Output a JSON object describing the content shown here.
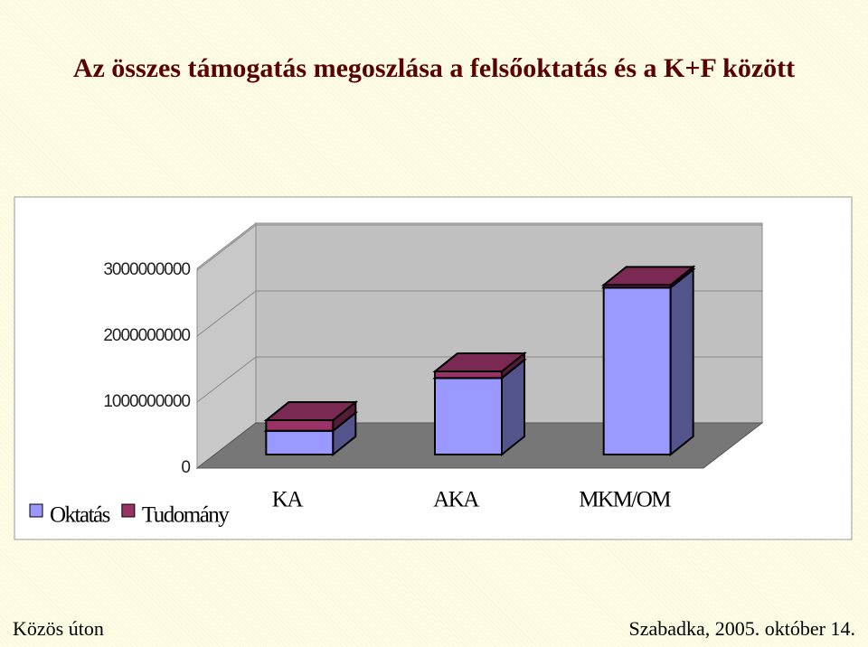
{
  "chart_data": {
    "type": "bar3d-stacked",
    "title": "Az összes támogatás megoszlása a felsőoktatás és a K+F között",
    "categories": [
      "KA",
      "AKA",
      "MKM/OM"
    ],
    "series": [
      {
        "name": "Oktatás",
        "color": "#9999ff",
        "values": [
          360000000,
          1160000000,
          2530000000
        ]
      },
      {
        "name": "Tudomány",
        "color": "#993366",
        "values": [
          160000000,
          100000000,
          40000000
        ]
      }
    ],
    "ylim": [
      0,
      3000000000
    ],
    "yticks": [
      0,
      1000000000,
      2000000000,
      3000000000
    ],
    "grid": true,
    "legend": "bottom-left"
  },
  "footer": {
    "left": "Közös úton",
    "right": "Szabadka, 2005. október 14."
  }
}
